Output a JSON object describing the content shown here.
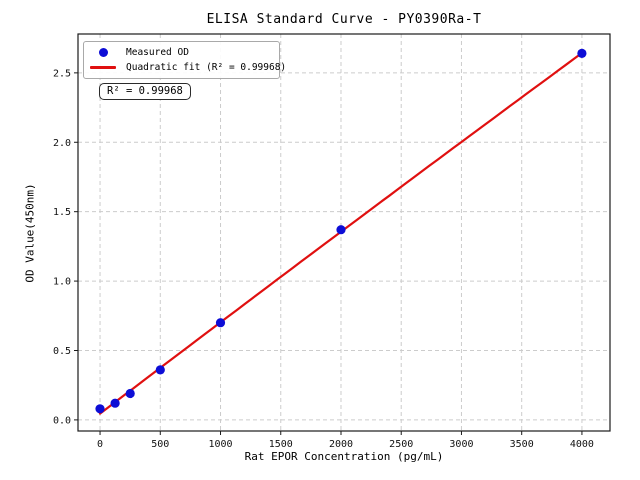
{
  "figure": {
    "title": "ELISA Standard Curve - PY0390Ra-T",
    "r2_annotation": "R² = 0.99968"
  },
  "chart_data": {
    "type": "scatter",
    "title": "ELISA Standard Curve - PY0390Ra-T",
    "xlabel": "Rat EPOR Concentration (pg/mL)",
    "ylabel": "OD Value(450nm)",
    "x": [
      0,
      125,
      250,
      500,
      1000,
      2000,
      4000
    ],
    "y": [
      0.08,
      0.12,
      0.19,
      0.36,
      0.7,
      1.37,
      2.64
    ],
    "series": [
      {
        "name": "Measured OD",
        "type": "scatter",
        "marker": "dot",
        "color": "#0d0dd6"
      },
      {
        "name": "Quadratic fit (R² = 0.99968)",
        "type": "line",
        "fit": "quadratic",
        "r_squared": 0.99968,
        "color": "#e01010"
      }
    ],
    "x_ticks": [
      0,
      500,
      1000,
      1500,
      2000,
      2500,
      3000,
      3500,
      4000
    ],
    "y_ticks": [
      0.0,
      0.5,
      1.0,
      1.5,
      2.0,
      2.5
    ],
    "xlim": [
      -183,
      4233
    ],
    "ylim": [
      -0.08,
      2.78
    ],
    "grid": true,
    "grid_color": "#cccccc",
    "legend_position": "upper left",
    "background": "#ffffff"
  }
}
